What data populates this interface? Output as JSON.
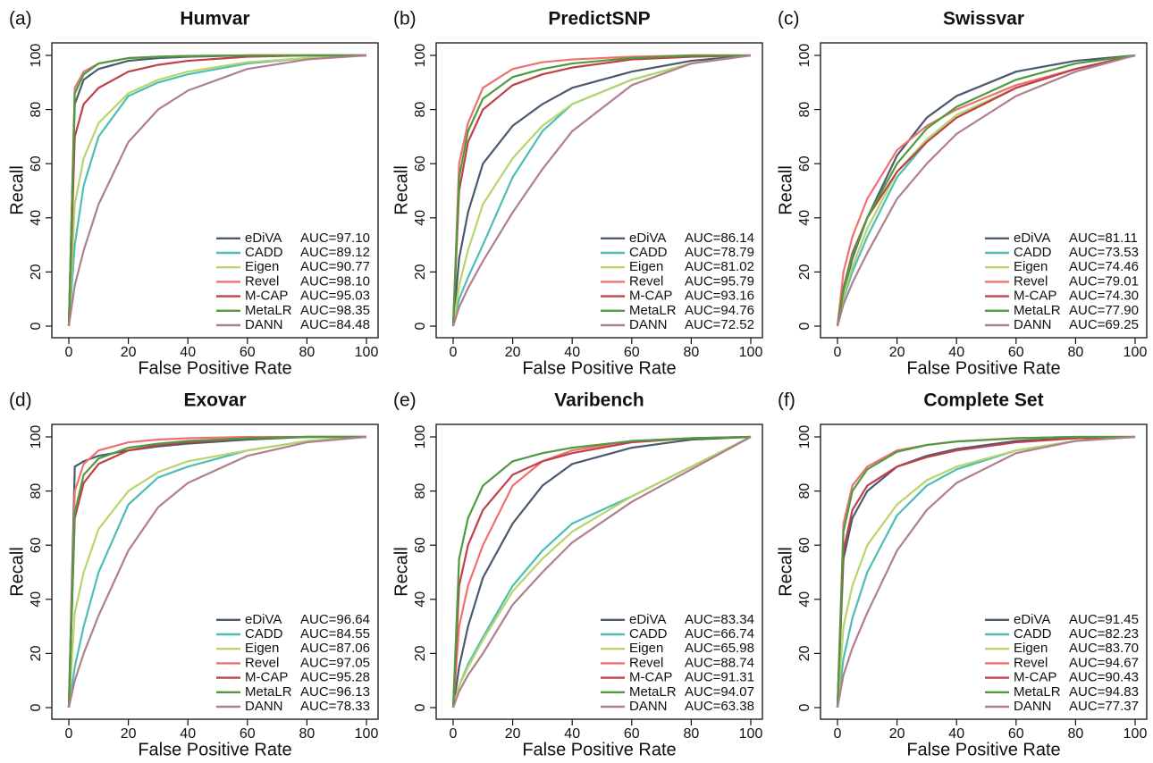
{
  "chart_data": [
    {
      "type": "line",
      "panel": "(a)",
      "title": "Humvar",
      "xlabel": "False Positive Rate",
      "ylabel": "Recall",
      "x": [
        0,
        2,
        5,
        10,
        20,
        30,
        40,
        60,
        80,
        100
      ],
      "xlim": [
        0,
        100
      ],
      "ylim": [
        0,
        100
      ],
      "xticks": [
        0,
        20,
        40,
        60,
        80,
        100
      ],
      "yticks": [
        0,
        20,
        40,
        60,
        80,
        100
      ],
      "legend": "lower right",
      "series": [
        {
          "name": "eDiVA",
          "auc": "AUC=97.10",
          "color": "#4a5a6e",
          "values": [
            0,
            82,
            91,
            95,
            98,
            99,
            99.5,
            100,
            100,
            100
          ]
        },
        {
          "name": "CADD",
          "auc": "AUC=89.12",
          "color": "#4dbdb6",
          "values": [
            0,
            30,
            52,
            70,
            85,
            90,
            93,
            97,
            99,
            100
          ]
        },
        {
          "name": "Eigen",
          "auc": "AUC=90.77",
          "color": "#b5d66a",
          "values": [
            0,
            45,
            62,
            75,
            86,
            91,
            94,
            97.5,
            99,
            100
          ]
        },
        {
          "name": "Revel",
          "auc": "AUC=98.10",
          "color": "#f07070",
          "values": [
            0,
            88,
            94,
            97,
            99,
            99.5,
            99.8,
            100,
            100,
            100
          ]
        },
        {
          "name": "M-CAP",
          "auc": "AUC=95.03",
          "color": "#c0404a",
          "values": [
            0,
            70,
            82,
            88,
            94,
            96.5,
            98,
            99.5,
            100,
            100
          ]
        },
        {
          "name": "MetaLR",
          "auc": "AUC=98.35",
          "color": "#4f9a3f",
          "values": [
            0,
            86,
            93,
            97,
            99,
            99.5,
            99.8,
            100,
            100,
            100
          ]
        },
        {
          "name": "DANN",
          "auc": "AUC=84.48",
          "color": "#b07f8e",
          "values": [
            0,
            15,
            28,
            45,
            68,
            80,
            87,
            95,
            98.5,
            100
          ]
        }
      ]
    },
    {
      "type": "line",
      "panel": "(b)",
      "title": "PredictSNP",
      "xlabel": "False Positive Rate",
      "ylabel": "Recall",
      "x": [
        0,
        2,
        5,
        10,
        20,
        30,
        40,
        60,
        80,
        100
      ],
      "xlim": [
        0,
        100
      ],
      "ylim": [
        0,
        100
      ],
      "xticks": [
        0,
        20,
        40,
        60,
        80,
        100
      ],
      "yticks": [
        0,
        20,
        40,
        60,
        80,
        100
      ],
      "legend": "lower right",
      "series": [
        {
          "name": "eDiVA",
          "auc": "AUC=86.14",
          "color": "#4a5a6e",
          "values": [
            0,
            25,
            42,
            60,
            74,
            82,
            88,
            94,
            98,
            100
          ]
        },
        {
          "name": "CADD",
          "auc": "AUC=78.79",
          "color": "#4dbdb6",
          "values": [
            0,
            10,
            18,
            30,
            55,
            72,
            82,
            91,
            97,
            100
          ]
        },
        {
          "name": "Eigen",
          "auc": "AUC=81.02",
          "color": "#b5d66a",
          "values": [
            0,
            15,
            28,
            45,
            62,
            74,
            82,
            91,
            97,
            100
          ]
        },
        {
          "name": "Revel",
          "auc": "AUC=95.79",
          "color": "#f07070",
          "values": [
            0,
            60,
            75,
            88,
            95,
            97.5,
            98.5,
            99.5,
            100,
            100
          ]
        },
        {
          "name": "M-CAP",
          "auc": "AUC=93.16",
          "color": "#c0404a",
          "values": [
            0,
            50,
            68,
            80,
            89,
            93,
            95.5,
            98.5,
            99.5,
            100
          ]
        },
        {
          "name": "MetaLR",
          "auc": "AUC=94.76",
          "color": "#4f9a3f",
          "values": [
            0,
            55,
            72,
            84,
            92,
            95,
            97,
            99,
            100,
            100
          ]
        },
        {
          "name": "DANN",
          "auc": "AUC=72.52",
          "color": "#b07f8e",
          "values": [
            0,
            7,
            14,
            24,
            42,
            58,
            72,
            89,
            97,
            100
          ]
        }
      ]
    },
    {
      "type": "line",
      "panel": "(c)",
      "title": "Swissvar",
      "xlabel": "False Positive Rate",
      "ylabel": "Recall",
      "x": [
        0,
        2,
        5,
        10,
        20,
        30,
        40,
        60,
        80,
        100
      ],
      "xlim": [
        0,
        100
      ],
      "ylim": [
        0,
        100
      ],
      "xticks": [
        0,
        20,
        40,
        60,
        80,
        100
      ],
      "yticks": [
        0,
        20,
        40,
        60,
        80,
        100
      ],
      "legend": "lower right",
      "series": [
        {
          "name": "eDiVA",
          "auc": "AUC=81.11",
          "color": "#4a5a6e",
          "values": [
            0,
            12,
            25,
            40,
            63,
            77,
            85,
            94,
            98,
            100
          ]
        },
        {
          "name": "CADD",
          "auc": "AUC=73.53",
          "color": "#4dbdb6",
          "values": [
            0,
            10,
            20,
            33,
            55,
            68,
            77,
            88,
            95,
            100
          ]
        },
        {
          "name": "Eigen",
          "auc": "AUC=74.46",
          "color": "#b5d66a",
          "values": [
            0,
            11,
            22,
            36,
            57,
            69,
            78,
            88,
            95,
            100
          ]
        },
        {
          "name": "Revel",
          "auc": "AUC=79.01",
          "color": "#f07070",
          "values": [
            0,
            20,
            33,
            47,
            65,
            74,
            80,
            89,
            95,
            100
          ]
        },
        {
          "name": "M-CAP",
          "auc": "AUC=74.30",
          "color": "#c0404a",
          "values": [
            0,
            14,
            27,
            40,
            57,
            68,
            77,
            88,
            95,
            100
          ]
        },
        {
          "name": "MetaLR",
          "auc": "AUC=77.90",
          "color": "#4f9a3f",
          "values": [
            0,
            13,
            26,
            40,
            60,
            73,
            81,
            91,
            97,
            100
          ]
        },
        {
          "name": "DANN",
          "auc": "AUC=69.25",
          "color": "#b07f8e",
          "values": [
            0,
            8,
            16,
            27,
            47,
            60,
            71,
            85,
            94,
            100
          ]
        }
      ]
    },
    {
      "type": "line",
      "panel": "(d)",
      "title": "Exovar",
      "xlabel": "False Positive Rate",
      "ylabel": "Recall",
      "x": [
        0,
        2,
        5,
        10,
        20,
        30,
        40,
        60,
        80,
        100
      ],
      "xlim": [
        0,
        100
      ],
      "ylim": [
        0,
        100
      ],
      "xticks": [
        0,
        20,
        40,
        60,
        80,
        100
      ],
      "yticks": [
        0,
        20,
        40,
        60,
        80,
        100
      ],
      "legend": "lower right",
      "series": [
        {
          "name": "eDiVA",
          "auc": "AUC=96.64",
          "color": "#4a5a6e",
          "values": [
            0,
            89,
            91,
            93,
            95,
            96.5,
            97.5,
            99,
            100,
            100
          ]
        },
        {
          "name": "CADD",
          "auc": "AUC=84.55",
          "color": "#4dbdb6",
          "values": [
            0,
            15,
            30,
            50,
            75,
            85,
            89,
            95,
            98.5,
            100
          ]
        },
        {
          "name": "Eigen",
          "auc": "AUC=87.06",
          "color": "#b5d66a",
          "values": [
            0,
            35,
            50,
            66,
            80,
            87,
            91,
            95,
            98.5,
            100
          ]
        },
        {
          "name": "Revel",
          "auc": "AUC=97.05",
          "color": "#f07070",
          "values": [
            0,
            80,
            90,
            95,
            98,
            99,
            99.5,
            100,
            100,
            100
          ]
        },
        {
          "name": "M-CAP",
          "auc": "AUC=95.28",
          "color": "#c0404a",
          "values": [
            0,
            70,
            83,
            90,
            95,
            97,
            98,
            99.5,
            100,
            100
          ]
        },
        {
          "name": "MetaLR",
          "auc": "AUC=96.13",
          "color": "#4f9a3f",
          "values": [
            0,
            72,
            86,
            92,
            96,
            97.5,
            98.5,
            99.5,
            100,
            100
          ]
        },
        {
          "name": "DANN",
          "auc": "AUC=78.33",
          "color": "#b07f8e",
          "values": [
            0,
            10,
            20,
            34,
            58,
            74,
            83,
            93,
            98,
            100
          ]
        }
      ]
    },
    {
      "type": "line",
      "panel": "(e)",
      "title": "Varibench",
      "xlabel": "False Positive Rate",
      "ylabel": "Recall",
      "x": [
        0,
        2,
        5,
        10,
        20,
        30,
        40,
        60,
        80,
        100
      ],
      "xlim": [
        0,
        100
      ],
      "ylim": [
        0,
        100
      ],
      "xticks": [
        0,
        20,
        40,
        60,
        80,
        100
      ],
      "yticks": [
        0,
        20,
        40,
        60,
        80,
        100
      ],
      "legend": "lower right",
      "series": [
        {
          "name": "eDiVA",
          "auc": "AUC=83.34",
          "color": "#4a5a6e",
          "values": [
            0,
            15,
            30,
            48,
            68,
            82,
            90,
            96,
            99,
            100
          ]
        },
        {
          "name": "CADD",
          "auc": "AUC=66.74",
          "color": "#4dbdb6",
          "values": [
            0,
            8,
            16,
            26,
            45,
            58,
            68,
            78,
            89,
            100
          ]
        },
        {
          "name": "Eigen",
          "auc": "AUC=65.98",
          "color": "#b5d66a",
          "values": [
            0,
            8,
            15,
            25,
            43,
            55,
            65,
            78,
            89,
            100
          ]
        },
        {
          "name": "Revel",
          "auc": "AUC=88.74",
          "color": "#f07070",
          "values": [
            0,
            30,
            45,
            60,
            82,
            91,
            95,
            98.5,
            99.5,
            100
          ]
        },
        {
          "name": "M-CAP",
          "auc": "AUC=91.31",
          "color": "#c0404a",
          "values": [
            0,
            45,
            60,
            73,
            86,
            91,
            94,
            98,
            99.5,
            100
          ]
        },
        {
          "name": "MetaLR",
          "auc": "AUC=94.07",
          "color": "#4f9a3f",
          "values": [
            0,
            55,
            70,
            82,
            91,
            94,
            96,
            98.5,
            99.5,
            100
          ]
        },
        {
          "name": "DANN",
          "auc": "AUC=63.38",
          "color": "#b07f8e",
          "values": [
            0,
            6,
            12,
            20,
            38,
            50,
            61,
            76,
            88,
            100
          ]
        }
      ]
    },
    {
      "type": "line",
      "panel": "(f)",
      "title": "Complete Set",
      "xlabel": "False Positive Rate",
      "ylabel": "Recall",
      "x": [
        0,
        2,
        5,
        10,
        20,
        30,
        40,
        60,
        80,
        100
      ],
      "xlim": [
        0,
        100
      ],
      "ylim": [
        0,
        100
      ],
      "xticks": [
        0,
        20,
        40,
        60,
        80,
        100
      ],
      "yticks": [
        0,
        20,
        40,
        60,
        80,
        100
      ],
      "legend": "lower right",
      "series": [
        {
          "name": "eDiVA",
          "auc": "AUC=91.45",
          "color": "#4a5a6e",
          "values": [
            0,
            55,
            70,
            80,
            89,
            93,
            95.5,
            98.5,
            99.5,
            100
          ]
        },
        {
          "name": "CADD",
          "auc": "AUC=82.23",
          "color": "#4dbdb6",
          "values": [
            0,
            18,
            33,
            50,
            71,
            82,
            88,
            95,
            98.5,
            100
          ]
        },
        {
          "name": "Eigen",
          "auc": "AUC=83.70",
          "color": "#b5d66a",
          "values": [
            0,
            30,
            45,
            60,
            75,
            84,
            89,
            95,
            98.5,
            100
          ]
        },
        {
          "name": "Revel",
          "auc": "AUC=94.67",
          "color": "#f07070",
          "values": [
            0,
            68,
            82,
            89,
            95,
            97,
            98.3,
            99.5,
            100,
            100
          ]
        },
        {
          "name": "M-CAP",
          "auc": "AUC=90.43",
          "color": "#c0404a",
          "values": [
            0,
            58,
            73,
            82,
            89,
            92.5,
            95,
            98,
            99.5,
            100
          ]
        },
        {
          "name": "MetaLR",
          "auc": "AUC=94.83",
          "color": "#4f9a3f",
          "values": [
            0,
            65,
            80,
            88,
            94.5,
            97,
            98.3,
            99.5,
            100,
            100
          ]
        },
        {
          "name": "DANN",
          "auc": "AUC=77.37",
          "color": "#b07f8e",
          "values": [
            0,
            12,
            22,
            35,
            58,
            73,
            83,
            94,
            98.5,
            100
          ]
        }
      ]
    }
  ]
}
